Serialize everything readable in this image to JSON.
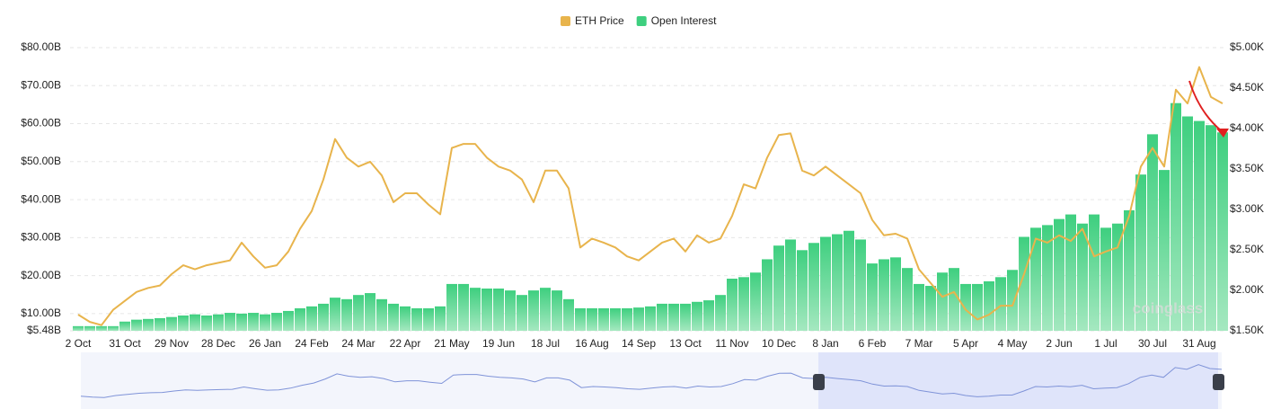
{
  "chart_data": {
    "type": "combo",
    "watermark": "coinglass",
    "legend_position": "top",
    "categories": [
      "2 Oct",
      null,
      null,
      null,
      "31 Oct",
      null,
      null,
      null,
      "29 Nov",
      null,
      null,
      null,
      "28 Dec",
      null,
      null,
      null,
      "26 Jan",
      null,
      null,
      null,
      "24 Feb",
      null,
      null,
      null,
      "24 Mar",
      null,
      null,
      null,
      "22 Apr",
      null,
      null,
      null,
      "21 May",
      null,
      null,
      null,
      "19 Jun",
      null,
      null,
      null,
      "18 Jul",
      null,
      null,
      null,
      "16 Aug",
      null,
      null,
      null,
      "14 Sep",
      null,
      null,
      null,
      "13 Oct",
      null,
      null,
      null,
      "11 Nov",
      null,
      null,
      null,
      "10 Dec",
      null,
      null,
      null,
      "8 Jan",
      null,
      null,
      null,
      "6 Feb",
      null,
      null,
      null,
      "7 Mar",
      null,
      null,
      null,
      "5 Apr",
      null,
      null,
      null,
      "4 May",
      null,
      null,
      null,
      "2 Jun",
      null,
      null,
      null,
      "1 Jul",
      null,
      null,
      null,
      "30 Jul",
      null,
      null,
      null,
      "31 Aug",
      null,
      null
    ],
    "series": [
      {
        "name": "ETH Price",
        "type": "line",
        "axis": "y2",
        "color": "#e8b44c",
        "values": [
          1.7,
          1.61,
          1.57,
          1.76,
          1.87,
          1.98,
          2.03,
          2.06,
          2.2,
          2.31,
          2.26,
          2.31,
          2.34,
          2.37,
          2.59,
          2.42,
          2.28,
          2.31,
          2.48,
          2.76,
          2.98,
          3.37,
          3.87,
          3.64,
          3.53,
          3.59,
          3.42,
          3.09,
          3.2,
          3.2,
          3.06,
          2.94,
          3.76,
          3.81,
          3.81,
          3.64,
          3.53,
          3.48,
          3.37,
          3.09,
          3.48,
          3.48,
          3.26,
          2.53,
          2.64,
          2.59,
          2.53,
          2.42,
          2.37,
          2.48,
          2.59,
          2.64,
          2.48,
          2.68,
          2.59,
          2.64,
          2.92,
          3.31,
          3.26,
          3.64,
          3.92,
          3.94,
          3.48,
          3.42,
          3.53,
          3.42,
          3.31,
          3.2,
          2.87,
          2.68,
          2.7,
          2.64,
          2.26,
          2.09,
          1.92,
          1.98,
          1.76,
          1.64,
          1.7,
          1.81,
          1.81,
          2.2,
          2.64,
          2.59,
          2.68,
          2.61,
          2.76,
          2.42,
          2.48,
          2.53,
          2.92,
          3.53,
          3.76,
          3.53,
          4.48,
          4.31,
          4.76,
          4.39,
          4.31
        ]
      },
      {
        "name": "Open Interest",
        "type": "bar",
        "axis": "y",
        "color": "#3ecf7f",
        "values": [
          6.7,
          6.7,
          6.7,
          6.7,
          7.9,
          8.4,
          8.6,
          8.8,
          9.1,
          9.5,
          9.8,
          9.5,
          9.8,
          10.2,
          10.0,
          10.2,
          9.8,
          10.2,
          10.7,
          11.4,
          11.9,
          12.6,
          14.2,
          13.8,
          14.9,
          15.4,
          13.8,
          12.6,
          11.9,
          11.4,
          11.4,
          11.9,
          17.8,
          17.8,
          16.8,
          16.6,
          16.6,
          16.1,
          14.9,
          16.1,
          16.8,
          16.1,
          13.8,
          11.4,
          11.4,
          11.4,
          11.4,
          11.4,
          11.6,
          11.9,
          12.6,
          12.6,
          12.6,
          13.1,
          13.5,
          14.9,
          19.2,
          19.6,
          20.8,
          24.3,
          27.9,
          29.5,
          26.7,
          28.6,
          30.2,
          30.9,
          31.8,
          29.5,
          23.2,
          24.3,
          24.8,
          22.0,
          17.8,
          17.3,
          20.8,
          22.0,
          17.8,
          17.8,
          18.5,
          19.6,
          21.5,
          30.2,
          32.6,
          33.3,
          34.9,
          36.1,
          33.7,
          36.1,
          32.6,
          33.7,
          37.2,
          46.6,
          57.2,
          47.8,
          65.4,
          61.9,
          60.7,
          59.6,
          57.7
        ]
      }
    ],
    "ylim": [
      5.48,
      80
    ],
    "yticks": [
      {
        "value": 5.48,
        "label": "$5.48B"
      },
      {
        "value": 10,
        "label": "$10.00B"
      },
      {
        "value": 20,
        "label": "$20.00B"
      },
      {
        "value": 30,
        "label": "$30.00B"
      },
      {
        "value": 40,
        "label": "$40.00B"
      },
      {
        "value": 50,
        "label": "$50.00B"
      },
      {
        "value": 60,
        "label": "$60.00B"
      },
      {
        "value": 70,
        "label": "$70.00B"
      },
      {
        "value": 80,
        "label": "$80.00B"
      }
    ],
    "y2lim": [
      1.5,
      5.0
    ],
    "y2ticks": [
      {
        "value": 1.5,
        "label": "$1.50K"
      },
      {
        "value": 2.0,
        "label": "$2.00K"
      },
      {
        "value": 2.5,
        "label": "$2.50K"
      },
      {
        "value": 3.0,
        "label": "$3.00K"
      },
      {
        "value": 3.5,
        "label": "$3.50K"
      },
      {
        "value": 4.0,
        "label": "$4.00K"
      },
      {
        "value": 4.5,
        "label": "$4.50K"
      },
      {
        "value": 5.0,
        "label": "$5.00K"
      }
    ],
    "grid": true
  }
}
